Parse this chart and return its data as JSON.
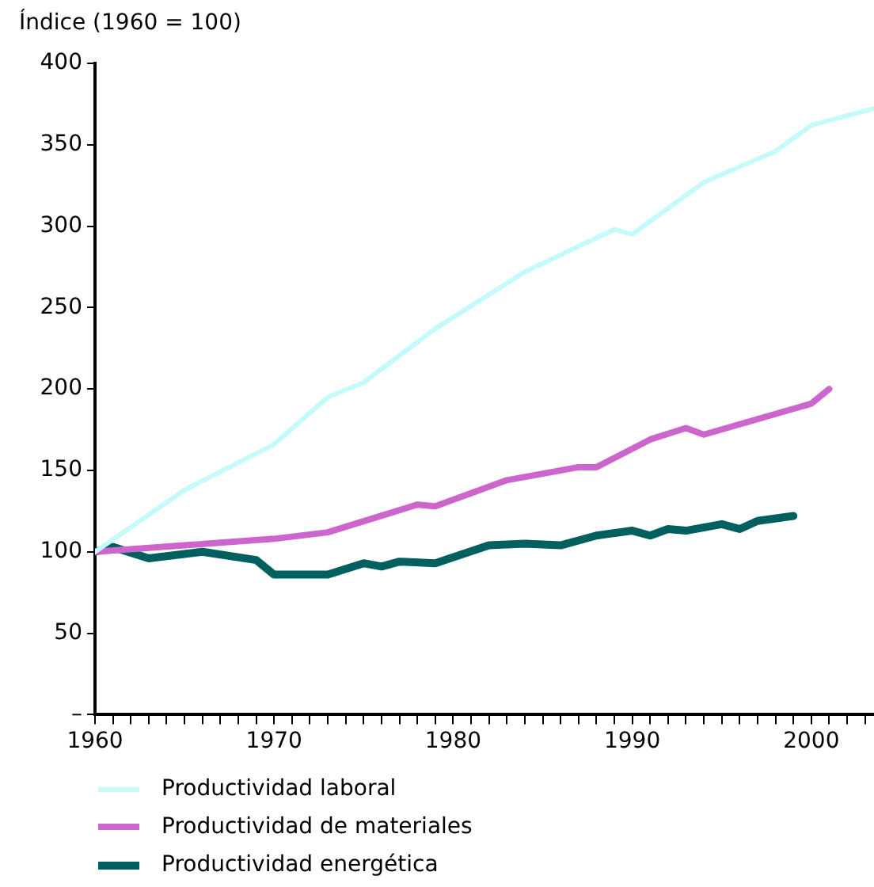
{
  "chart_data": {
    "type": "line",
    "ylabel": "Índice (1960 = 100)",
    "xlim": [
      1960,
      2003.5
    ],
    "xticks": [
      1960,
      {
        "value": 1961,
        "label": null
      },
      {
        "value": 1962,
        "label": null
      },
      {
        "value": 1963,
        "label": null
      },
      {
        "value": 1964,
        "label": null
      },
      {
        "value": 1965,
        "label": null
      },
      {
        "value": 1966,
        "label": null
      },
      {
        "value": 1967,
        "label": null
      },
      {
        "value": 1968,
        "label": null
      },
      {
        "value": 1969,
        "label": null
      },
      1970,
      {
        "value": 1971,
        "label": null
      },
      {
        "value": 1972,
        "label": null
      },
      {
        "value": 1973,
        "label": null
      },
      {
        "value": 1974,
        "label": null
      },
      {
        "value": 1975,
        "label": null
      },
      {
        "value": 1976,
        "label": null
      },
      {
        "value": 1977,
        "label": null
      },
      {
        "value": 1978,
        "label": null
      },
      {
        "value": 1979,
        "label": null
      },
      1980,
      {
        "value": 1981,
        "label": null
      },
      {
        "value": 1982,
        "label": null
      },
      {
        "value": 1983,
        "label": null
      },
      {
        "value": 1984,
        "label": null
      },
      {
        "value": 1985,
        "label": null
      },
      {
        "value": 1986,
        "label": null
      },
      {
        "value": 1987,
        "label": null
      },
      {
        "value": 1988,
        "label": null
      },
      {
        "value": 1989,
        "label": null
      },
      1990,
      {
        "value": 1991,
        "label": null
      },
      {
        "value": 1992,
        "label": null
      },
      {
        "value": 1993,
        "label": null
      },
      {
        "value": 1994,
        "label": null
      },
      {
        "value": 1995,
        "label": null
      },
      {
        "value": 1996,
        "label": null
      },
      {
        "value": 1997,
        "label": null
      },
      {
        "value": 1998,
        "label": null
      },
      {
        "value": 1999,
        "label": null
      },
      2000,
      {
        "value": 2001,
        "label": null
      },
      {
        "value": 2002,
        "label": null
      },
      {
        "value": 2003,
        "label": null
      }
    ],
    "ylim": [
      0,
      400
    ],
    "yticks": [
      {
        "value": 0,
        "label": "–"
      },
      50,
      100,
      150,
      200,
      250,
      300,
      350,
      400
    ],
    "grid": false,
    "legend": "bottom",
    "marker": "none",
    "line_style": "solid",
    "series": [
      {
        "name": "Productividad laboral",
        "color": "#c4fafa",
        "x": [
          1960,
          1965,
          1970,
          1973,
          1975,
          1979,
          1984,
          1989,
          1990,
          1994,
          1998,
          2000,
          2003.4
        ],
        "values": [
          100,
          138,
          166,
          195,
          204,
          237,
          272,
          298,
          295,
          327,
          346,
          362,
          372
        ]
      },
      {
        "name": "Productividad de materiales",
        "color": "#cc66cc",
        "x": [
          1960,
          1965,
          1970,
          1973,
          1978,
          1979,
          1983,
          1987,
          1988,
          1991,
          1993,
          1994,
          2000,
          2001
        ],
        "values": [
          100,
          104,
          108,
          112,
          129,
          128,
          144,
          152,
          152,
          169,
          176,
          172,
          191,
          200
        ]
      },
      {
        "name": "Productividad energética",
        "color": "#006060",
        "x": [
          1960,
          1961,
          1963,
          1966,
          1969,
          1970,
          1973,
          1975,
          1976,
          1977,
          1979,
          1982,
          1984,
          1986,
          1988,
          1990,
          1991,
          1992,
          1993,
          1995,
          1996,
          1997,
          1999
        ],
        "values": [
          100,
          103,
          96,
          100,
          95,
          86,
          86,
          93,
          91,
          94,
          93,
          104,
          105,
          104,
          110,
          113,
          110,
          114,
          113,
          117,
          114,
          119,
          122
        ]
      }
    ]
  }
}
